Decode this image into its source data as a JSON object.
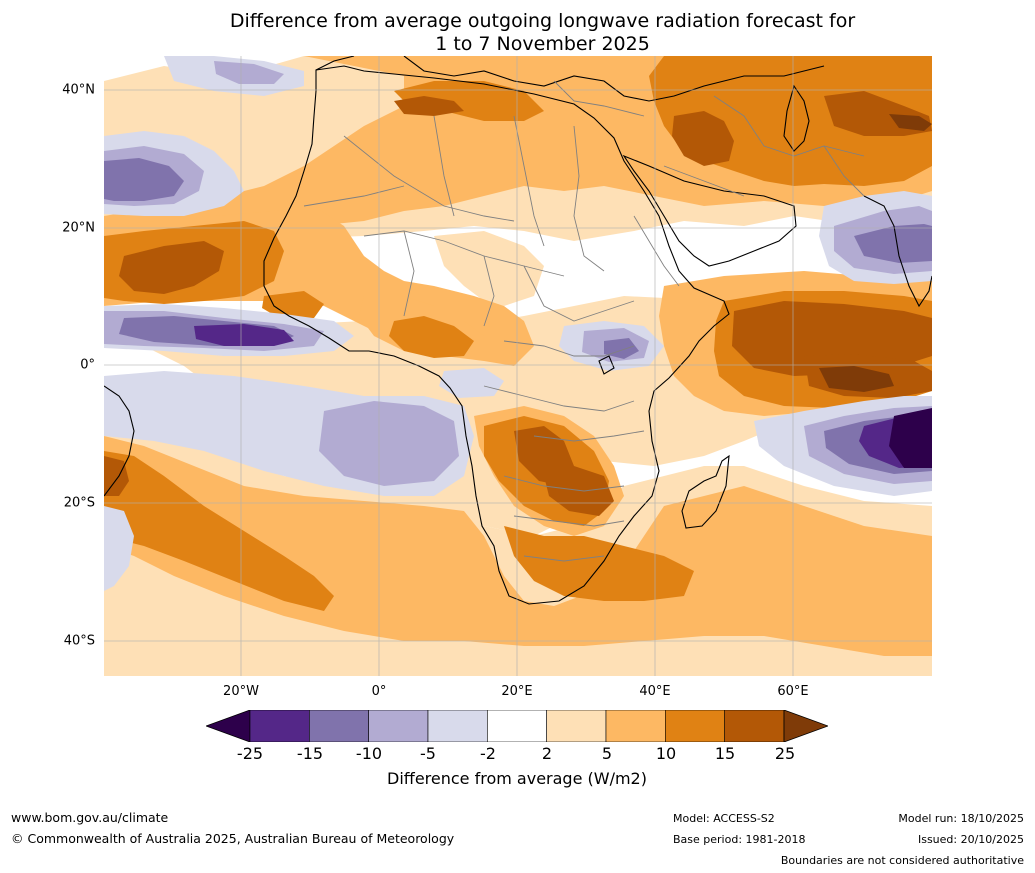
{
  "title": {
    "line1": "Difference from average outgoing longwave radiation forecast for",
    "line2": "1 to 7 November 2025"
  },
  "map": {
    "lat_labels": [
      "40°N",
      "20°N",
      "0°",
      "20°S",
      "40°S"
    ],
    "lon_labels": [
      "20°W",
      "0°",
      "20°E",
      "40°E",
      "60°E"
    ],
    "colors": {
      "ocean_background": "#ffffff",
      "coast": "#000000",
      "borders": "#808080",
      "grid": "#b0b0b0"
    }
  },
  "colorbar": {
    "ticks": [
      "-25",
      "-15",
      "-10",
      "-5",
      "-2",
      "2",
      "5",
      "10",
      "15",
      "25"
    ],
    "colors": [
      "#2d004b",
      "#542788",
      "#8073ac",
      "#b2abd2",
      "#d8daeb",
      "#ffffff",
      "#fee0b6",
      "#fdb863",
      "#e08214",
      "#b35806",
      "#7f3b08"
    ],
    "label": "Difference from average (W/m2)"
  },
  "footer": {
    "website": "www.bom.gov.au/climate",
    "copyright": "© Commonwealth of Australia 2025, Australian Bureau of Meteorology",
    "model": "Model: ACCESS-S2",
    "base_period": "Base period: 1981-2018",
    "model_run": "Model run: 18/10/2025",
    "issued": "Issued: 20/10/2025",
    "disclaimer": "Boundaries are not considered authoritative"
  }
}
